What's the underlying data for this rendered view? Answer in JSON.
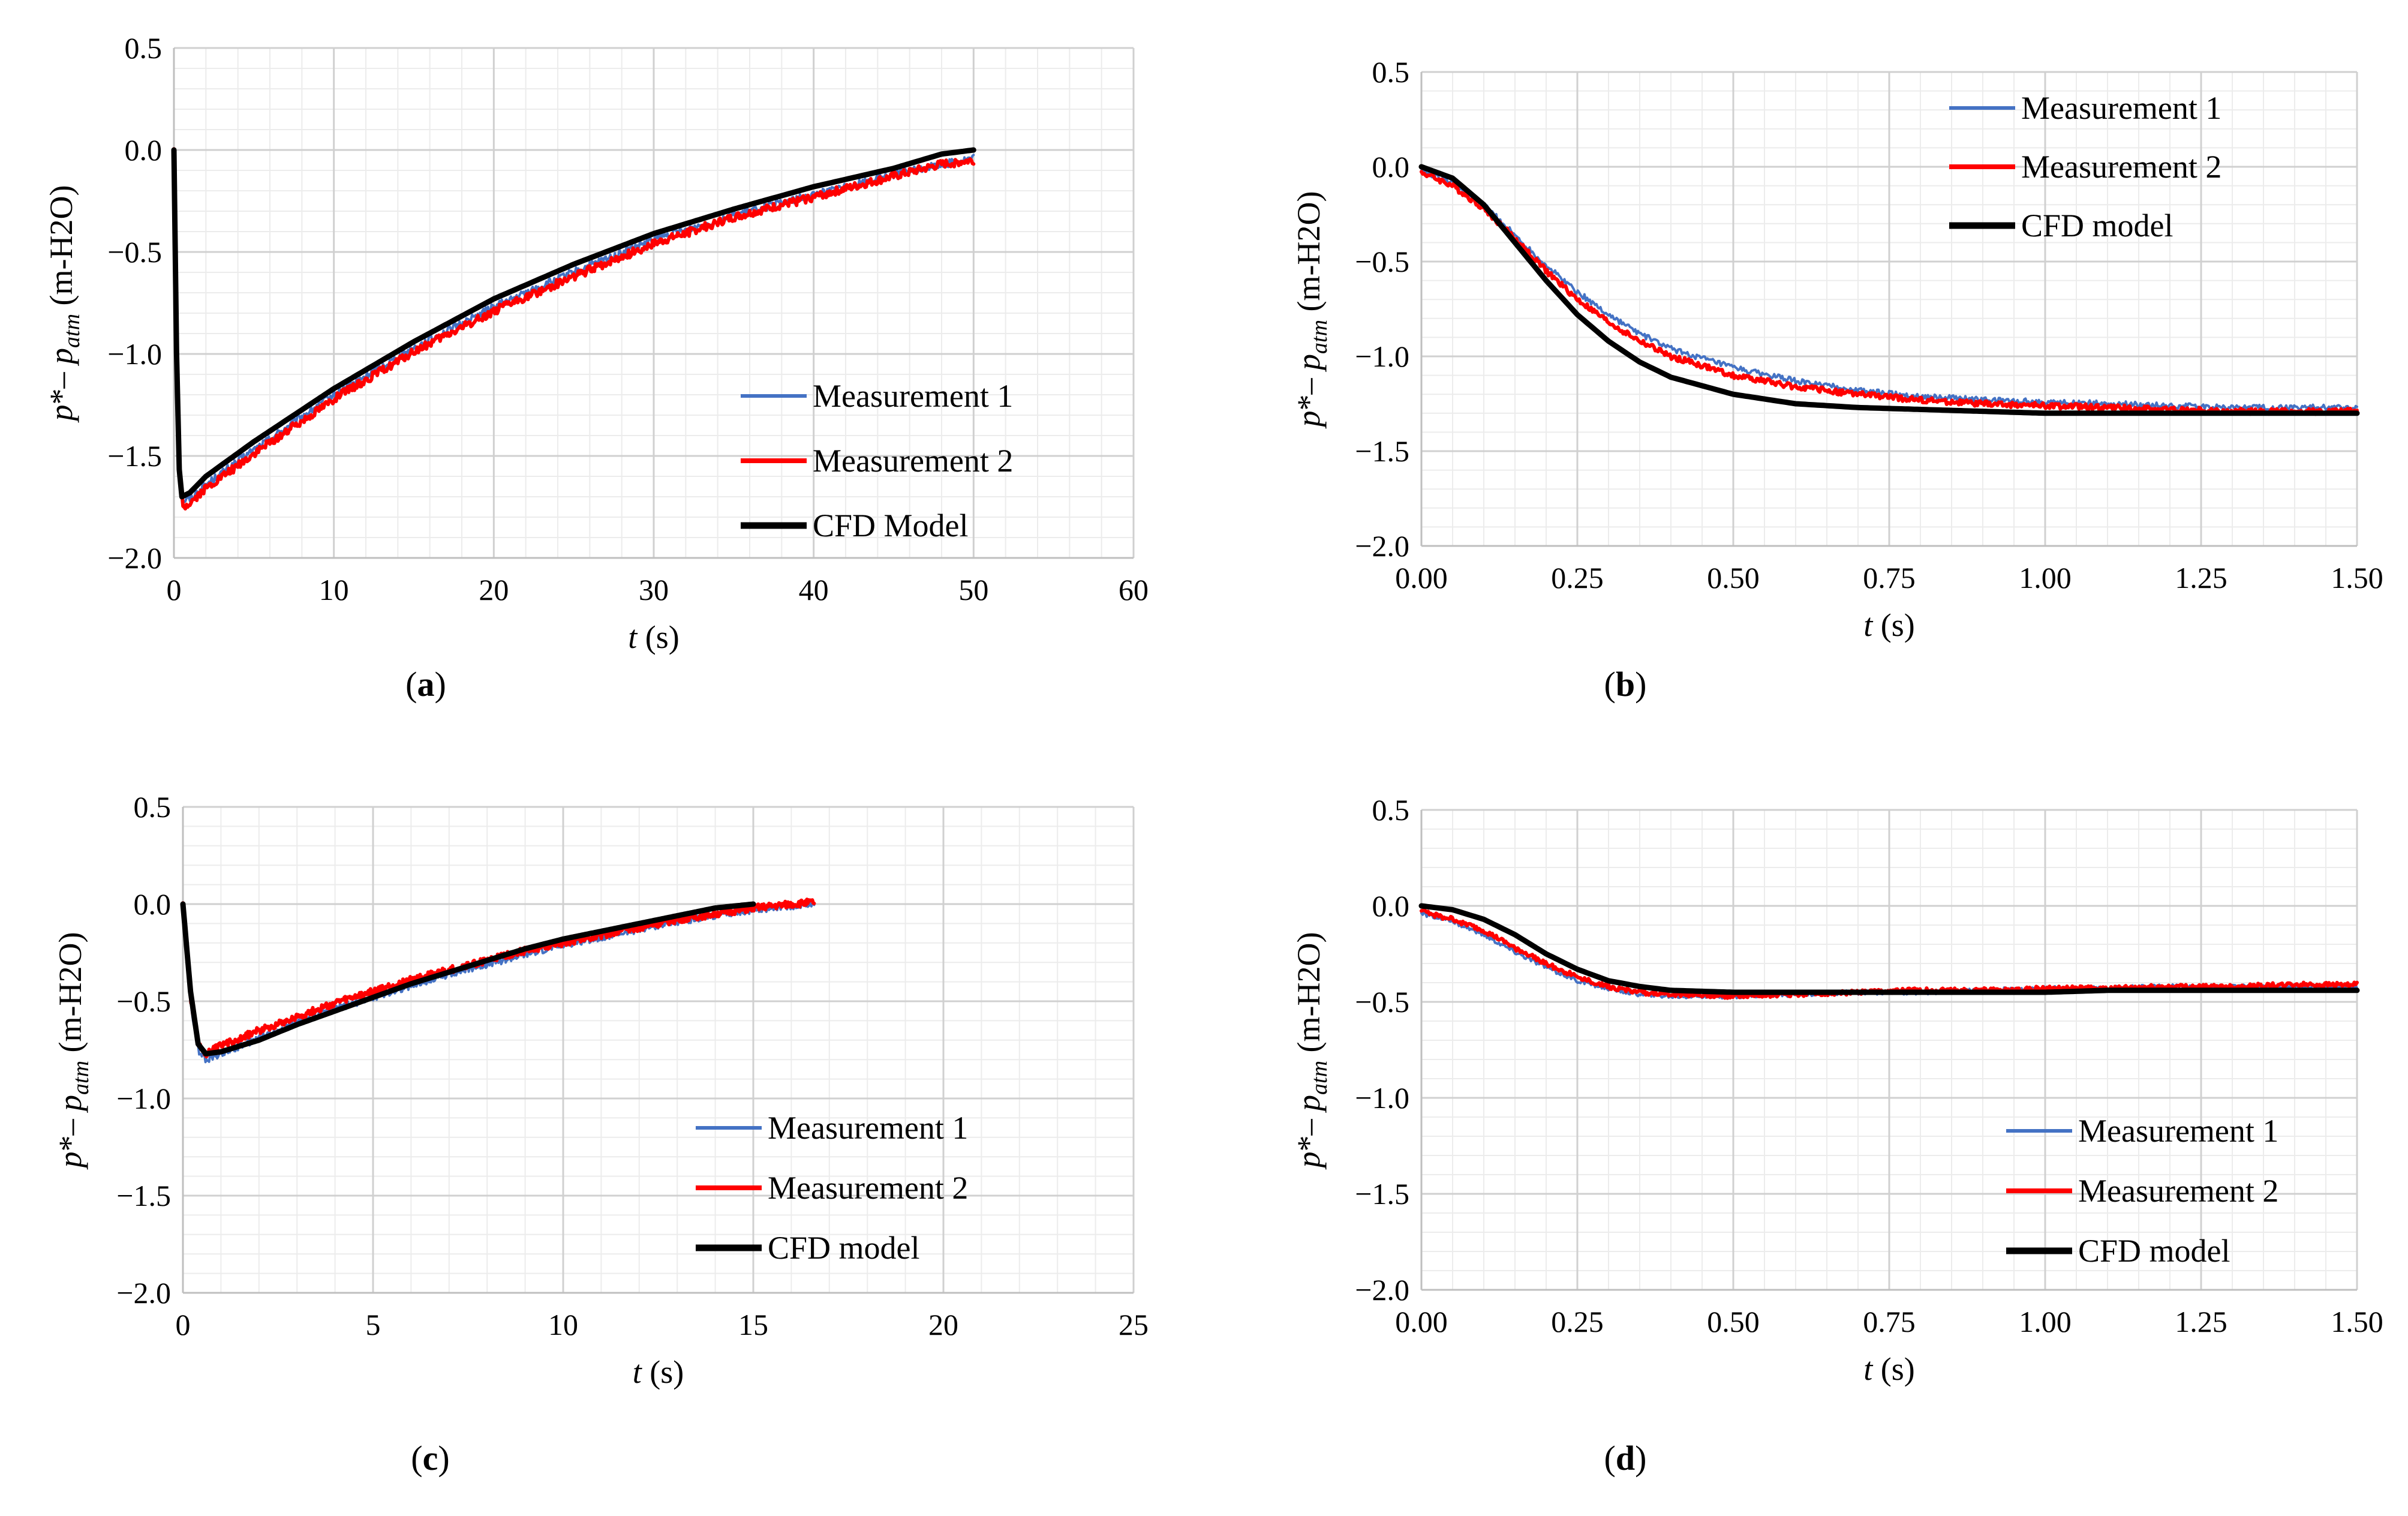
{
  "colors": {
    "measurement1": "#4472C4",
    "measurement2": "#FF0000",
    "cfd": "#000000",
    "grid_major": "#d0d0d0",
    "grid_minor": "#ececec"
  },
  "chart_data": [
    {
      "id": "a",
      "type": "line",
      "caption_letter": "a",
      "xlabel_var": "t",
      "xlabel_unit": " (s)",
      "ylabel_parts": {
        "p": "p",
        "star": "*",
        "dash": "– ",
        "p2": "p",
        "sub": "atm",
        "unit": "  (m-H2O)"
      },
      "xlim": [
        0,
        60
      ],
      "ylim": [
        -2.0,
        0.5
      ],
      "xticks": [
        0,
        10,
        20,
        30,
        40,
        50,
        60
      ],
      "xtick_labels": [
        "0",
        "10",
        "20",
        "30",
        "40",
        "50",
        "60"
      ],
      "yticks": [
        0.5,
        0.0,
        -0.5,
        -1.0,
        -1.5,
        -2.0
      ],
      "ytick_labels": [
        "0.5",
        "0.0",
        "−0.5",
        "−1.0",
        "−1.5",
        "−2.0"
      ],
      "legend_position": "bottom-right",
      "series": [
        {
          "name": "Measurement 1",
          "x": [
            0,
            0.3,
            0.6,
            1,
            2,
            5,
            10,
            15,
            20,
            25,
            30,
            35,
            40,
            45,
            48,
            50
          ],
          "y": [
            0,
            -1.55,
            -1.72,
            -1.71,
            -1.64,
            -1.47,
            -1.2,
            -0.97,
            -0.77,
            -0.6,
            -0.44,
            -0.32,
            -0.22,
            -0.12,
            -0.07,
            -0.04
          ]
        },
        {
          "name": "Measurement 2",
          "x": [
            0,
            0.3,
            0.6,
            1,
            2,
            5,
            10,
            15,
            20,
            25,
            30,
            35,
            40,
            45,
            48,
            50
          ],
          "y": [
            0,
            -1.6,
            -1.75,
            -1.73,
            -1.66,
            -1.49,
            -1.22,
            -0.99,
            -0.79,
            -0.62,
            -0.46,
            -0.33,
            -0.23,
            -0.13,
            -0.07,
            -0.05
          ]
        },
        {
          "name": "CFD Model",
          "x": [
            0,
            0.25,
            0.5,
            1,
            2,
            5,
            10,
            15,
            20,
            25,
            30,
            35,
            40,
            45,
            48,
            50
          ],
          "y": [
            0,
            -1.5,
            -1.7,
            -1.68,
            -1.6,
            -1.43,
            -1.17,
            -0.94,
            -0.73,
            -0.56,
            -0.41,
            -0.29,
            -0.18,
            -0.09,
            -0.02,
            0.0
          ]
        }
      ],
      "noise_amplitude": 0.02
    },
    {
      "id": "b",
      "type": "line",
      "caption_letter": "b",
      "xlabel_var": "t",
      "xlabel_unit": " (s)",
      "ylabel_parts": {
        "p": "p",
        "star": "*",
        "dash": "– ",
        "p2": "p",
        "sub": "atm",
        "unit": "  (m-H2O)"
      },
      "xlim": [
        0,
        1.5
      ],
      "ylim": [
        -2.0,
        0.5
      ],
      "xticks": [
        0,
        0.25,
        0.5,
        0.75,
        1.0,
        1.25,
        1.5
      ],
      "xtick_labels": [
        "0.00",
        "0.25",
        "0.50",
        "0.75",
        "1.00",
        "1.25",
        "1.50"
      ],
      "yticks": [
        0.5,
        0.0,
        -0.5,
        -1.0,
        -1.5,
        -2.0
      ],
      "ytick_labels": [
        "0.5",
        "0.0",
        "−0.5",
        "−1.0",
        "−1.5",
        "−2.0"
      ],
      "legend_position": "top-right",
      "series": [
        {
          "name": "Measurement 1",
          "x": [
            0,
            0.05,
            0.1,
            0.15,
            0.2,
            0.25,
            0.3,
            0.35,
            0.4,
            0.5,
            0.6,
            0.7,
            0.8,
            0.9,
            1.0,
            1.1,
            1.2,
            1.3,
            1.4,
            1.5
          ],
          "y": [
            -0.02,
            -0.08,
            -0.2,
            -0.36,
            -0.52,
            -0.66,
            -0.78,
            -0.88,
            -0.96,
            -1.06,
            -1.13,
            -1.18,
            -1.21,
            -1.23,
            -1.24,
            -1.25,
            -1.26,
            -1.27,
            -1.27,
            -1.27
          ]
        },
        {
          "name": "Measurement 2",
          "x": [
            0,
            0.05,
            0.1,
            0.15,
            0.2,
            0.25,
            0.3,
            0.35,
            0.4,
            0.5,
            0.6,
            0.7,
            0.8,
            0.9,
            1.0,
            1.1,
            1.2,
            1.3,
            1.4,
            1.5
          ],
          "y": [
            -0.03,
            -0.1,
            -0.22,
            -0.38,
            -0.55,
            -0.7,
            -0.82,
            -0.92,
            -1.0,
            -1.1,
            -1.16,
            -1.2,
            -1.23,
            -1.25,
            -1.26,
            -1.27,
            -1.28,
            -1.29,
            -1.29,
            -1.29
          ]
        },
        {
          "name": "CFD model",
          "x": [
            0,
            0.05,
            0.1,
            0.15,
            0.2,
            0.25,
            0.3,
            0.35,
            0.4,
            0.5,
            0.6,
            0.7,
            0.8,
            0.9,
            1.0,
            1.1,
            1.2,
            1.3,
            1.4,
            1.5
          ],
          "y": [
            0.0,
            -0.06,
            -0.2,
            -0.4,
            -0.6,
            -0.78,
            -0.92,
            -1.03,
            -1.11,
            -1.2,
            -1.25,
            -1.27,
            -1.28,
            -1.29,
            -1.3,
            -1.3,
            -1.3,
            -1.3,
            -1.3,
            -1.3
          ]
        }
      ],
      "noise_amplitude": 0.015
    },
    {
      "id": "c",
      "type": "line",
      "caption_letter": "c",
      "xlabel_var": "t",
      "xlabel_unit": " (s)",
      "ylabel_parts": {
        "p": "p",
        "star": "*",
        "dash": "– ",
        "p2": "p",
        "sub": "atm",
        "unit": "  (m-H2O)"
      },
      "xlim": [
        0,
        25
      ],
      "ylim": [
        -2.0,
        0.5
      ],
      "xticks": [
        0,
        5,
        10,
        15,
        20,
        25
      ],
      "xtick_labels": [
        "0",
        "5",
        "10",
        "15",
        "20",
        "25"
      ],
      "yticks": [
        0.5,
        0.0,
        -0.5,
        -1.0,
        -1.5,
        -2.0
      ],
      "ytick_labels": [
        "0.5",
        "0.0",
        "−0.5",
        "−1.0",
        "−1.5",
        "−2.0"
      ],
      "legend_position": "bottom-right",
      "series": [
        {
          "name": "Measurement 1",
          "x": [
            0,
            0.2,
            0.4,
            0.6,
            1,
            2,
            3,
            4,
            5,
            6,
            7,
            8,
            9,
            10,
            11,
            12,
            13,
            14,
            15,
            16,
            16.6
          ],
          "y": [
            0,
            -0.5,
            -0.75,
            -0.8,
            -0.77,
            -0.69,
            -0.61,
            -0.54,
            -0.48,
            -0.42,
            -0.36,
            -0.31,
            -0.26,
            -0.21,
            -0.17,
            -0.13,
            -0.09,
            -0.06,
            -0.03,
            -0.01,
            0.0
          ]
        },
        {
          "name": "Measurement 2",
          "x": [
            0,
            0.2,
            0.4,
            0.6,
            1,
            2,
            3,
            4,
            5,
            6,
            7,
            8,
            9,
            10,
            11,
            12,
            13,
            14,
            15,
            16,
            16.6
          ],
          "y": [
            0,
            -0.48,
            -0.72,
            -0.77,
            -0.73,
            -0.65,
            -0.58,
            -0.51,
            -0.45,
            -0.39,
            -0.34,
            -0.29,
            -0.24,
            -0.2,
            -0.16,
            -0.12,
            -0.08,
            -0.05,
            -0.02,
            0.0,
            0.01
          ]
        },
        {
          "name": "CFD model",
          "x": [
            0,
            0.2,
            0.4,
            0.6,
            1,
            2,
            3,
            4,
            5,
            6,
            7,
            8,
            9,
            10,
            11,
            12,
            13,
            14,
            15
          ],
          "y": [
            0,
            -0.45,
            -0.72,
            -0.77,
            -0.76,
            -0.7,
            -0.62,
            -0.55,
            -0.48,
            -0.41,
            -0.35,
            -0.29,
            -0.23,
            -0.18,
            -0.14,
            -0.1,
            -0.06,
            -0.02,
            0.0
          ]
        }
      ],
      "noise_amplitude": 0.018
    },
    {
      "id": "d",
      "type": "line",
      "caption_letter": "d",
      "xlabel_var": "t",
      "xlabel_unit": " (s)",
      "ylabel_parts": {
        "p": "p",
        "star": "*",
        "dash": "– ",
        "p2": "p",
        "sub": "atm",
        "unit": "  (m-H2O)"
      },
      "xlim": [
        0,
        1.5
      ],
      "ylim": [
        -2.0,
        0.5
      ],
      "xticks": [
        0,
        0.25,
        0.5,
        0.75,
        1.0,
        1.25,
        1.5
      ],
      "xtick_labels": [
        "0.00",
        "0.25",
        "0.50",
        "0.75",
        "1.00",
        "1.25",
        "1.50"
      ],
      "yticks": [
        0.5,
        0.0,
        -0.5,
        -1.0,
        -1.5,
        -2.0
      ],
      "ytick_labels": [
        "0.5",
        "0.0",
        "−0.5",
        "−1.0",
        "−1.5",
        "−2.0"
      ],
      "legend_position": "bottom-right",
      "series": [
        {
          "name": "Measurement 1",
          "x": [
            0,
            0.05,
            0.1,
            0.15,
            0.2,
            0.25,
            0.3,
            0.35,
            0.4,
            0.5,
            0.6,
            0.7,
            0.8,
            0.9,
            1.0,
            1.1,
            1.2,
            1.3,
            1.4,
            1.5
          ],
          "y": [
            -0.04,
            -0.08,
            -0.15,
            -0.24,
            -0.32,
            -0.39,
            -0.43,
            -0.46,
            -0.47,
            -0.47,
            -0.46,
            -0.45,
            -0.45,
            -0.44,
            -0.43,
            -0.43,
            -0.42,
            -0.42,
            -0.42,
            -0.42
          ]
        },
        {
          "name": "Measurement 2",
          "x": [
            0,
            0.05,
            0.1,
            0.15,
            0.2,
            0.25,
            0.3,
            0.35,
            0.4,
            0.5,
            0.6,
            0.7,
            0.8,
            0.9,
            1.0,
            1.1,
            1.2,
            1.3,
            1.4,
            1.5
          ],
          "y": [
            -0.03,
            -0.07,
            -0.13,
            -0.22,
            -0.3,
            -0.37,
            -0.42,
            -0.45,
            -0.46,
            -0.47,
            -0.46,
            -0.45,
            -0.44,
            -0.44,
            -0.43,
            -0.43,
            -0.42,
            -0.42,
            -0.41,
            -0.41
          ]
        },
        {
          "name": "CFD model",
          "x": [
            0,
            0.05,
            0.1,
            0.15,
            0.2,
            0.25,
            0.3,
            0.35,
            0.4,
            0.5,
            0.6,
            0.7,
            0.8,
            0.9,
            1.0,
            1.1,
            1.2,
            1.3,
            1.4,
            1.5
          ],
          "y": [
            0.0,
            -0.02,
            -0.07,
            -0.15,
            -0.25,
            -0.33,
            -0.39,
            -0.42,
            -0.44,
            -0.45,
            -0.45,
            -0.45,
            -0.45,
            -0.45,
            -0.45,
            -0.44,
            -0.44,
            -0.44,
            -0.44,
            -0.44
          ]
        }
      ],
      "noise_amplitude": 0.012
    }
  ]
}
